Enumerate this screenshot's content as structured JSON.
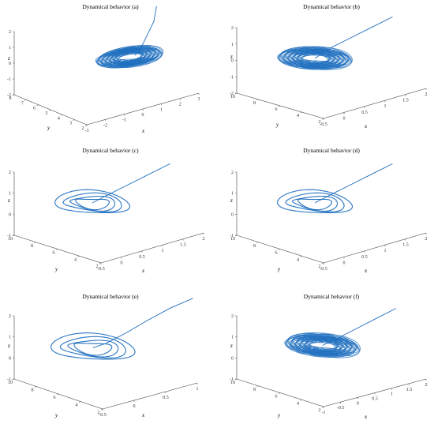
{
  "figure": {
    "panels": [
      {
        "title": "Dynamical behavior (a)",
        "xlabel": "x",
        "ylabel": "y",
        "zlabel": "z"
      },
      {
        "title": "Dynamical behavior (b)",
        "xlabel": "x",
        "ylabel": "y",
        "zlabel": "z"
      },
      {
        "title": "Dynamical behavior (c)",
        "xlabel": "x",
        "ylabel": "y",
        "zlabel": "z"
      },
      {
        "title": "Dynamical behavior (d)",
        "xlabel": "x",
        "ylabel": "y",
        "zlabel": "z"
      },
      {
        "title": "Dynamical behavior (e)",
        "xlabel": "x",
        "ylabel": "y",
        "zlabel": "z"
      },
      {
        "title": "Dynamical behavior (f)",
        "xlabel": "x",
        "ylabel": "y",
        "zlabel": "z"
      }
    ]
  },
  "chart_data": [
    {
      "type": "line",
      "title": "Dynamical behavior (a)",
      "xlabel": "x",
      "ylabel": "y",
      "zlabel": "z",
      "color": "#1f6fbf",
      "x_ticks": [
        "-3",
        "-2",
        "-1",
        "0",
        "1",
        "2",
        "3"
      ],
      "y_ticks": [
        "2",
        "3",
        "4",
        "5",
        "6",
        "7",
        "8"
      ],
      "z_ticks": [
        "-2",
        "-1",
        "0",
        "1",
        "2"
      ],
      "xlim": [
        -3,
        3
      ],
      "ylim": [
        2,
        8
      ],
      "zlim": [
        -2,
        2
      ],
      "grid": false,
      "attractor": {
        "cx": 0.9,
        "cy": 4.5,
        "rx": 1.6,
        "ry": 1.3,
        "cz": 0.1,
        "dense": true
      },
      "transient": {
        "x": [
          3,
          2.6,
          2.0,
          1.6,
          1.2
        ],
        "y": [
          5.5,
          5.1,
          4.8,
          4.6,
          4.5
        ],
        "z": [
          2.0,
          1.4,
          0.8,
          0.4,
          0.1
        ]
      }
    },
    {
      "type": "line",
      "title": "Dynamical behavior (b)",
      "xlabel": "x",
      "ylabel": "y",
      "zlabel": "z",
      "color": "#1f6fbf",
      "x_ticks": [
        "-0.5",
        "0",
        "0.5",
        "1",
        "1.5",
        "2"
      ],
      "y_ticks": [
        "2",
        "4",
        "6",
        "8",
        "10"
      ],
      "z_ticks": [
        "-2",
        "-1",
        "0",
        "1",
        "2"
      ],
      "xlim": [
        -0.5,
        2
      ],
      "ylim": [
        2,
        10
      ],
      "zlim": [
        -2,
        2
      ],
      "grid": false,
      "attractor": {
        "cx": 0.4,
        "cy": 6.2,
        "rx": 0.6,
        "ry": 2.6,
        "cz": 0.0,
        "dense": true
      },
      "transient": {
        "x": [
          1.5,
          1.2,
          0.9,
          0.6,
          0.4
        ],
        "y": [
          3.2,
          4.0,
          4.8,
          5.6,
          6.2
        ],
        "z": [
          2.0,
          1.5,
          1.0,
          0.5,
          0.0
        ]
      }
    },
    {
      "type": "line",
      "title": "Dynamical behavior (c)",
      "xlabel": "x",
      "ylabel": "y",
      "zlabel": "z",
      "color": "#1f6fbf",
      "x_ticks": [
        "-0.5",
        "0",
        "0.5",
        "1",
        "1.5",
        "2"
      ],
      "y_ticks": [
        "2",
        "4",
        "6",
        "8",
        "10"
      ],
      "z_ticks": [
        "-1",
        "0",
        "1",
        "2"
      ],
      "xlim": [
        -0.5,
        2
      ],
      "ylim": [
        2,
        10
      ],
      "zlim": [
        -1,
        2
      ],
      "grid": false,
      "attractor": {
        "cx": 0.4,
        "cy": 6.2,
        "rx": 0.6,
        "ry": 2.6,
        "cz": 0.0,
        "dense": false
      },
      "transient": {
        "x": [
          1.5,
          1.2,
          0.9,
          0.6,
          0.4
        ],
        "y": [
          3.2,
          4.0,
          4.8,
          5.6,
          6.2
        ],
        "z": [
          1.5,
          1.1,
          0.7,
          0.3,
          0.0
        ]
      }
    },
    {
      "type": "line",
      "title": "Dynamical behavior (d)",
      "xlabel": "x",
      "ylabel": "y",
      "zlabel": "z",
      "color": "#1f6fbf",
      "x_ticks": [
        "-0.5",
        "0",
        "0.5",
        "1",
        "1.5",
        "2"
      ],
      "y_ticks": [
        "2",
        "4",
        "6",
        "8",
        "10"
      ],
      "z_ticks": [
        "-1",
        "0",
        "1",
        "2"
      ],
      "xlim": [
        -0.5,
        2
      ],
      "ylim": [
        2,
        10
      ],
      "zlim": [
        -1,
        2
      ],
      "grid": false,
      "attractor": {
        "cx": 0.4,
        "cy": 6.2,
        "rx": 0.6,
        "ry": 2.6,
        "cz": 0.0,
        "dense": false
      },
      "transient": {
        "x": [
          1.5,
          1.2,
          0.9,
          0.6,
          0.4
        ],
        "y": [
          3.2,
          4.0,
          4.8,
          5.6,
          6.2
        ],
        "z": [
          1.5,
          1.1,
          0.7,
          0.3,
          0.0
        ]
      }
    },
    {
      "type": "line",
      "title": "Dynamical behavior (e)",
      "xlabel": "x",
      "ylabel": "y",
      "zlabel": "z",
      "color": "#1f6fbf",
      "x_ticks": [
        "-0.5",
        "0",
        "0.5",
        "1"
      ],
      "y_ticks": [
        "2",
        "4",
        "6",
        "8",
        "10"
      ],
      "z_ticks": [
        "-1",
        "0",
        "1",
        "2"
      ],
      "xlim": [
        -0.5,
        1
      ],
      "ylim": [
        2,
        10
      ],
      "zlim": [
        -1,
        2
      ],
      "grid": false,
      "attractor": {
        "cx": 0.1,
        "cy": 6.3,
        "rx": 0.45,
        "ry": 2.8,
        "cz": 0.0,
        "dense": false
      },
      "transient": {
        "x": [
          1.0,
          0.8,
          0.6,
          0.4,
          0.2,
          0.1
        ],
        "y": [
          2.4,
          3.3,
          4.2,
          5.0,
          5.7,
          6.3
        ],
        "z": [
          2.0,
          1.6,
          1.1,
          0.6,
          0.2,
          0.0
        ]
      }
    },
    {
      "type": "line",
      "title": "Dynamical behavior (f)",
      "xlabel": "x",
      "ylabel": "y",
      "zlabel": "z",
      "color": "#1f6fbf",
      "x_ticks": [
        "-1",
        "-0.5",
        "0",
        "0.5",
        "1",
        "1.5",
        "2"
      ],
      "y_ticks": [
        "2",
        "4",
        "6",
        "8",
        "10"
      ],
      "z_ticks": [
        "-1",
        "0",
        "1",
        "2"
      ],
      "xlim": [
        -1,
        2
      ],
      "ylim": [
        2,
        10
      ],
      "zlim": [
        -1,
        2
      ],
      "grid": false,
      "attractor": {
        "cx": 0.3,
        "cy": 6.2,
        "rx": 0.7,
        "ry": 2.7,
        "cz": 0.0,
        "dense": true
      },
      "transient": {
        "x": [
          1.5,
          1.2,
          0.9,
          0.6,
          0.3
        ],
        "y": [
          3.2,
          4.0,
          4.8,
          5.6,
          6.2
        ],
        "z": [
          1.5,
          1.1,
          0.7,
          0.3,
          0.0
        ]
      }
    }
  ]
}
